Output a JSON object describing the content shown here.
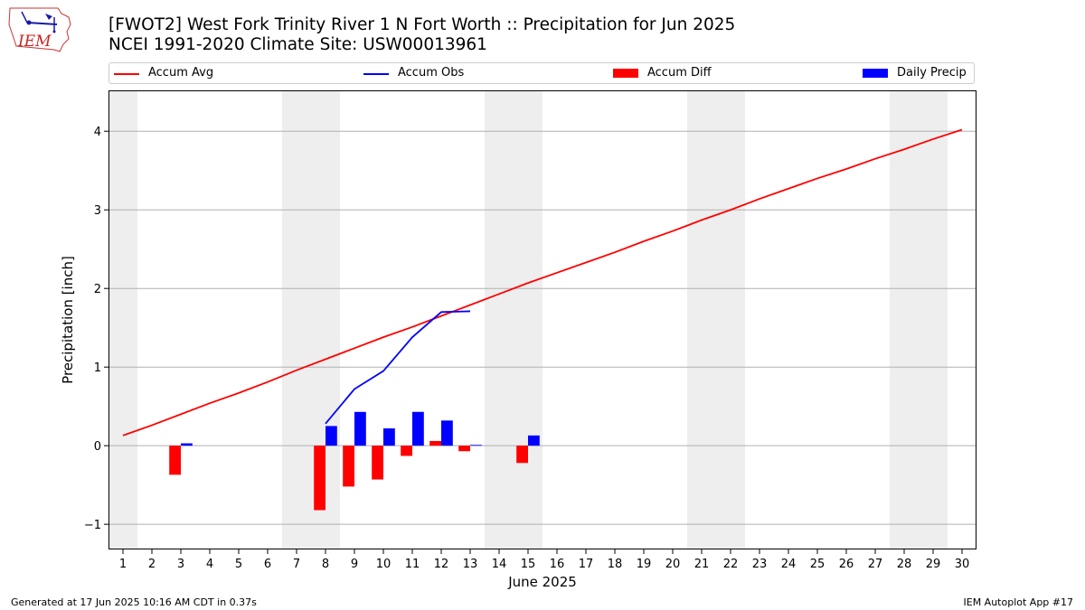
{
  "title": "[FWOT2] West Fork Trinity River 1 N Fort Worth :: Precipitation for Jun 2025",
  "subtitle": "NCEI 1991-2020 Climate Site: USW00013961",
  "logo_text": "IEM",
  "footer_left": "Generated at 17 Jun 2025 10:16 AM CDT in 0.37s",
  "footer_right": "IEM Autoplot App #17",
  "colors": {
    "avg": "#ff0000",
    "obs": "#0000ff",
    "diff": "#ff0000",
    "daily": "#0000ff",
    "weekend": "#eeeeee",
    "grid": "#b0b0b0"
  },
  "legend": [
    {
      "label": "Accum Avg",
      "kind": "line",
      "color": "#ff0000"
    },
    {
      "label": "Accum Obs",
      "kind": "line",
      "color": "#0000ff"
    },
    {
      "label": "Accum Diff",
      "kind": "box",
      "color": "#ff0000"
    },
    {
      "label": "Daily Precip",
      "kind": "box",
      "color": "#0000ff"
    }
  ],
  "chart_data": {
    "type": "bar",
    "xlabel": "June 2025",
    "ylabel": "Precipitation [inch]",
    "xlim": [
      0.5,
      30.5
    ],
    "ylim": [
      -1.32,
      4.52
    ],
    "yticks": [
      -1,
      0,
      1,
      2,
      3,
      4
    ],
    "ytick_labels": [
      "−1",
      "0",
      "1",
      "2",
      "3",
      "4"
    ],
    "days": [
      1,
      2,
      3,
      4,
      5,
      6,
      7,
      8,
      9,
      10,
      11,
      12,
      13,
      14,
      15,
      16,
      17,
      18,
      19,
      20,
      21,
      22,
      23,
      24,
      25,
      26,
      27,
      28,
      29,
      30
    ],
    "weekend_shading": [
      [
        0.5,
        1.5
      ],
      [
        6.5,
        8.5
      ],
      [
        13.5,
        15.5
      ],
      [
        20.5,
        22.5
      ],
      [
        27.5,
        29.5
      ]
    ],
    "grid": "horizontal",
    "series": [
      {
        "name": "Accum Avg",
        "type": "line",
        "x": [
          1,
          2,
          3,
          4,
          5,
          6,
          7,
          8,
          9,
          10,
          11,
          12,
          13,
          14,
          15,
          16,
          17,
          18,
          19,
          20,
          21,
          22,
          23,
          24,
          25,
          26,
          27,
          28,
          29,
          30
        ],
        "values": [
          0.13,
          0.26,
          0.4,
          0.54,
          0.67,
          0.81,
          0.96,
          1.1,
          1.24,
          1.38,
          1.51,
          1.65,
          1.79,
          1.93,
          2.07,
          2.2,
          2.33,
          2.46,
          2.6,
          2.73,
          2.87,
          3.0,
          3.14,
          3.27,
          3.4,
          3.52,
          3.65,
          3.77,
          3.9,
          4.02
        ]
      },
      {
        "name": "Accum Obs",
        "type": "line",
        "x": [
          8,
          9,
          10,
          11,
          12,
          13
        ],
        "values": [
          0.28,
          0.72,
          0.95,
          1.38,
          1.7,
          1.71
        ]
      },
      {
        "name": "Accum Diff",
        "type": "bar",
        "x": [
          3,
          8,
          9,
          10,
          11,
          12,
          13,
          15
        ],
        "values": [
          -0.37,
          -0.82,
          -0.52,
          -0.43,
          -0.13,
          0.06,
          -0.07,
          -0.22
        ]
      },
      {
        "name": "Daily Precip",
        "type": "bar",
        "x": [
          3,
          8,
          9,
          10,
          11,
          12,
          13,
          15
        ],
        "values": [
          0.03,
          0.25,
          0.43,
          0.22,
          0.43,
          0.32,
          0.01,
          0.13
        ]
      }
    ]
  }
}
